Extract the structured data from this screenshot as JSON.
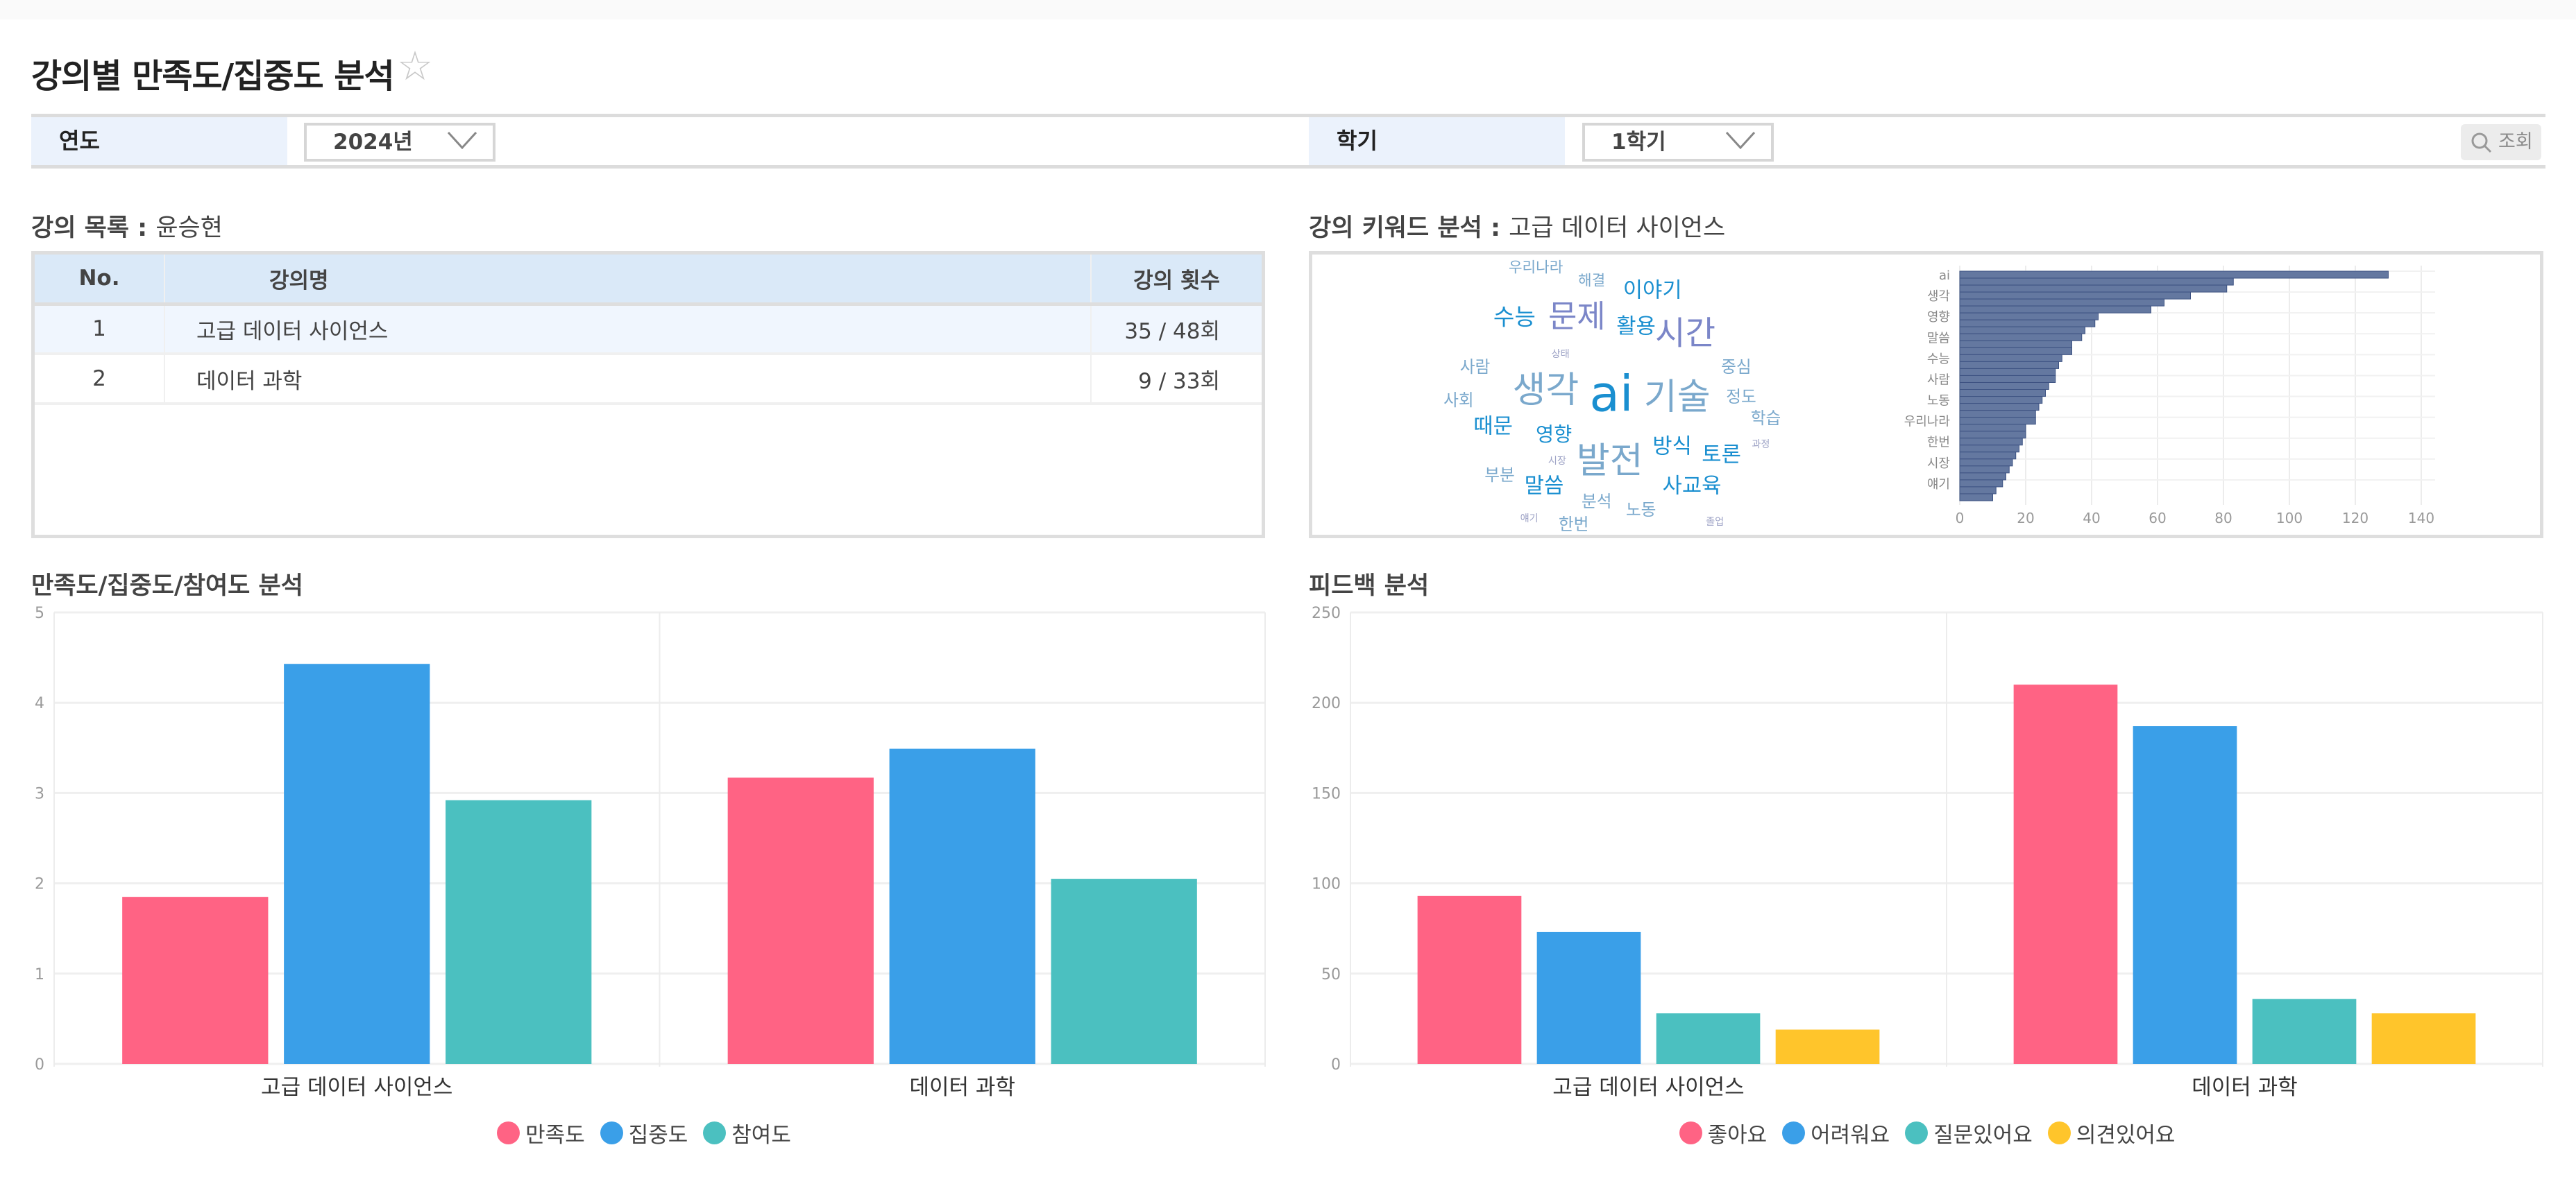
{
  "page": {
    "title": "강의별 만족도/집중도 분석",
    "favorite_icon": "star-outline-icon"
  },
  "filters": {
    "year_label": "연도",
    "year_value": "2024년",
    "semester_label": "학기",
    "semester_value": "1학기",
    "search_label": "조회"
  },
  "course_list": {
    "title": "강의 목록 :",
    "professor": "윤승현",
    "columns": [
      "No.",
      "강의명",
      "강의 횟수"
    ],
    "rows": [
      {
        "no": "1",
        "name": "고급 데이터 사이언스",
        "count": "35 / 48회"
      },
      {
        "no": "2",
        "name": "데이터 과학",
        "count": "9 / 33회"
      }
    ]
  },
  "keyword": {
    "title": "강의 키워드 분석 :",
    "course": "고급 데이터 사이언스",
    "words": [
      "우리나라",
      "해결",
      "이야기",
      "수능",
      "문제",
      "활용",
      "시간",
      "상태",
      "사람",
      "중심",
      "생각",
      "ai",
      "기술",
      "사회",
      "정도",
      "학습",
      "때문",
      "영향",
      "방식",
      "과정",
      "토론",
      "발전",
      "시장",
      "부분",
      "말씀",
      "사교육",
      "분석",
      "노동",
      "얘기",
      "한번",
      "졸업"
    ],
    "colors": {
      "blue": "#1a8fd0",
      "steel": "#7aa8cc",
      "purple": "#7b86c8",
      "lavender": "#9ea3c6"
    }
  },
  "chart_data": [
    {
      "type": "bar",
      "orientation": "horizontal",
      "tick_labels_y": [
        "ai",
        "",
        "",
        "생각",
        "",
        "",
        "영향",
        "",
        "",
        "말씀",
        "",
        "",
        "수능",
        "",
        "",
        "사람",
        "",
        "",
        "노동",
        "",
        "",
        "우리나라",
        "",
        "",
        "한번",
        "",
        "",
        "시장",
        "",
        "",
        "얘기",
        "",
        ""
      ],
      "values": [
        130,
        83,
        81,
        70,
        62,
        58,
        42,
        41,
        38,
        37,
        34,
        34,
        31,
        30,
        29,
        29,
        27,
        26,
        25,
        24,
        23,
        23,
        20,
        20,
        19,
        18,
        17,
        16,
        15,
        14,
        13,
        11,
        10
      ],
      "xlim": [
        0,
        140
      ],
      "xticks": [
        0,
        20,
        40,
        60,
        80,
        100,
        120,
        140
      ],
      "grid": true,
      "color": "#6478a0"
    },
    {
      "type": "bar",
      "title": "만족도/집중도/참여도 분석",
      "categories": [
        "고급 데이터 사이언스",
        "데이터 과학"
      ],
      "series": [
        {
          "name": "만족도",
          "values": [
            1.85,
            3.17
          ],
          "color": "#ff6384"
        },
        {
          "name": "집중도",
          "values": [
            4.43,
            3.49
          ],
          "color": "#3a9fe8"
        },
        {
          "name": "참여도",
          "values": [
            2.92,
            2.05
          ],
          "color": "#4bc0c0"
        }
      ],
      "ylim": [
        0,
        5
      ],
      "yticks": [
        0,
        1,
        2,
        3,
        4,
        5
      ],
      "grid": true,
      "legend": "bottom"
    },
    {
      "type": "bar",
      "title": "피드백 분석",
      "categories": [
        "고급 데이터 사이언스",
        "데이터 과학"
      ],
      "series": [
        {
          "name": "좋아요",
          "values": [
            93,
            210
          ],
          "color": "#ff6384"
        },
        {
          "name": "어려워요",
          "values": [
            73,
            187
          ],
          "color": "#3a9fe8"
        },
        {
          "name": "질문있어요",
          "values": [
            28,
            36
          ],
          "color": "#4bc0c0"
        },
        {
          "name": "의견있어요",
          "values": [
            19,
            28
          ],
          "color": "#ffc52b"
        }
      ],
      "ylim": [
        0,
        250
      ],
      "yticks": [
        0,
        50,
        100,
        150,
        200,
        250
      ],
      "grid": true,
      "legend": "bottom"
    }
  ]
}
